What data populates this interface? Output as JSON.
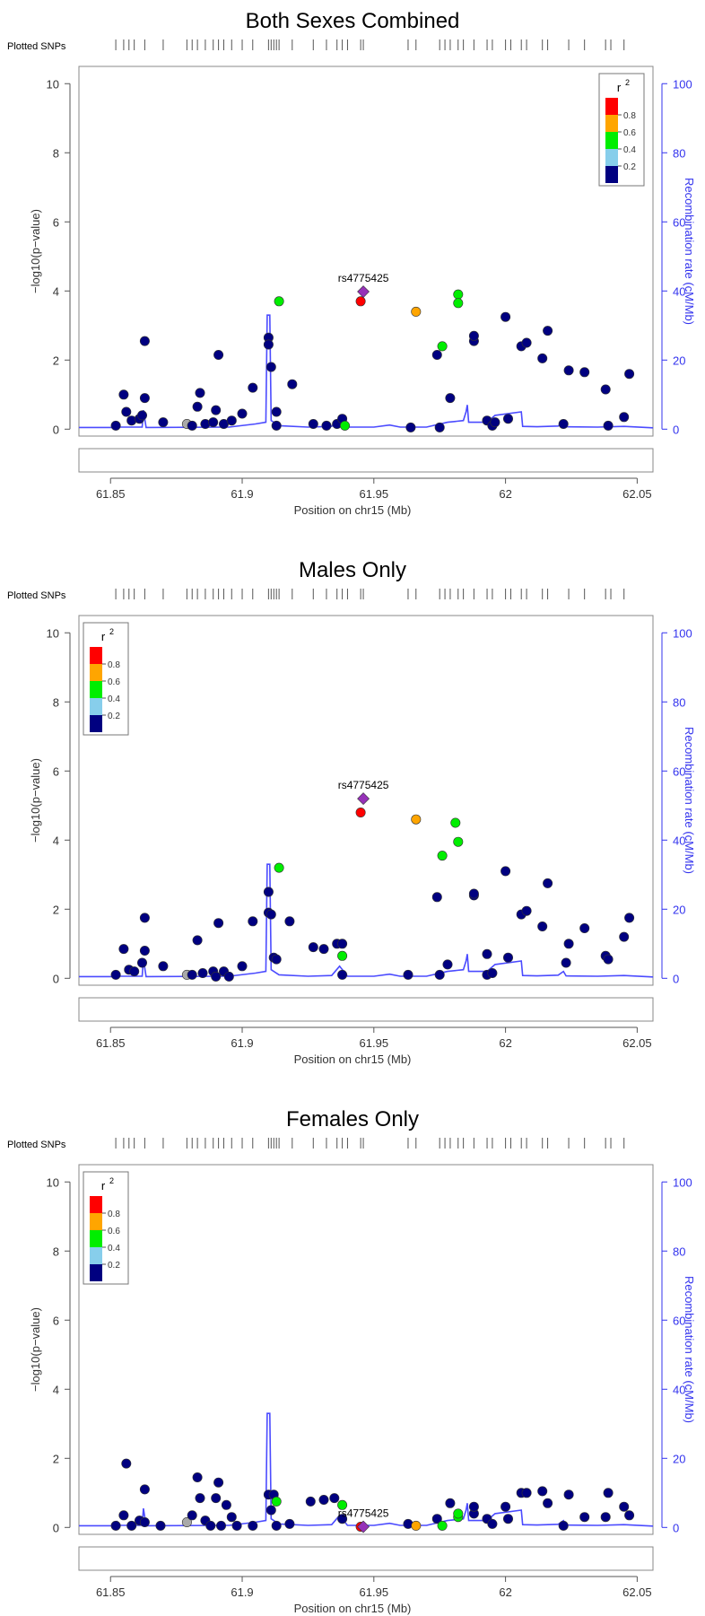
{
  "chart_data": [
    {
      "type": "scatter",
      "title": "Both Sexes Combined",
      "plotted_snps_label": "Plotted SNPs",
      "xlabel": "Position on chr15 (Mb)",
      "ylabel": "−log10(p−value)",
      "y2label": "Recombination rate (cM/Mb)",
      "xlim": [
        61.838,
        62.056
      ],
      "ylim": [
        -0.2,
        10.5
      ],
      "y2lim": [
        -2,
        105
      ],
      "xticks": [
        61.85,
        61.9,
        61.95,
        62,
        62.05
      ],
      "xtick_labels": [
        "61.85",
        "61.9",
        "61.95",
        "62",
        "62.05"
      ],
      "yticks": [
        0,
        2,
        4,
        6,
        8,
        10
      ],
      "ytick_labels": [
        "0",
        "2",
        "4",
        "6",
        "8",
        "10"
      ],
      "y2ticks": [
        0,
        20,
        40,
        60,
        80,
        100
      ],
      "y2tick_labels": [
        "0",
        "20",
        "40",
        "60",
        "80",
        "100"
      ],
      "legend": {
        "title": "r",
        "title_sup": "2",
        "placement": "top-right",
        "labels": [
          "0.8",
          "0.6",
          "0.4",
          "0.2"
        ]
      },
      "lead_snp": {
        "label": "rs4775425",
        "x": 61.946,
        "y": 3.98
      },
      "points": [
        [
          61.852,
          0.1,
          0
        ],
        [
          61.855,
          1.0,
          0
        ],
        [
          61.856,
          0.5,
          0
        ],
        [
          61.858,
          0.25,
          0
        ],
        [
          61.861,
          0.3,
          0
        ],
        [
          61.862,
          0.4,
          0
        ],
        [
          61.863,
          0.9,
          0
        ],
        [
          61.863,
          2.55,
          0
        ],
        [
          61.87,
          0.2,
          0
        ],
        [
          61.879,
          0.15,
          5
        ],
        [
          61.881,
          0.1,
          0
        ],
        [
          61.883,
          0.65,
          0
        ],
        [
          61.884,
          1.05,
          0
        ],
        [
          61.886,
          0.15,
          0
        ],
        [
          61.889,
          0.2,
          0
        ],
        [
          61.89,
          0.55,
          0
        ],
        [
          61.891,
          2.15,
          0
        ],
        [
          61.893,
          0.15,
          0
        ],
        [
          61.896,
          0.25,
          0
        ],
        [
          61.9,
          0.45,
          0
        ],
        [
          61.904,
          1.2,
          0
        ],
        [
          61.91,
          2.65,
          0
        ],
        [
          61.91,
          2.45,
          0
        ],
        [
          61.911,
          1.8,
          0
        ],
        [
          61.913,
          0.5,
          0
        ],
        [
          61.913,
          0.1,
          0
        ],
        [
          61.914,
          3.7,
          2
        ],
        [
          61.919,
          1.3,
          0
        ],
        [
          61.927,
          0.15,
          0
        ],
        [
          61.932,
          0.1,
          0
        ],
        [
          61.936,
          0.15,
          0
        ],
        [
          61.938,
          0.3,
          0
        ],
        [
          61.939,
          0.1,
          2
        ],
        [
          61.945,
          3.7,
          4
        ],
        [
          61.964,
          0.05,
          0
        ],
        [
          61.966,
          3.4,
          3
        ],
        [
          61.974,
          2.15,
          0
        ],
        [
          61.975,
          0.05,
          0
        ],
        [
          61.976,
          2.4,
          2
        ],
        [
          61.979,
          0.9,
          0
        ],
        [
          61.982,
          3.9,
          2
        ],
        [
          61.982,
          3.65,
          2
        ],
        [
          61.988,
          2.55,
          0
        ],
        [
          61.988,
          2.7,
          0
        ],
        [
          61.993,
          0.25,
          0
        ],
        [
          61.995,
          0.1,
          0
        ],
        [
          61.996,
          0.2,
          0
        ],
        [
          62.0,
          3.25,
          0
        ],
        [
          62.001,
          0.3,
          0
        ],
        [
          62.006,
          2.4,
          0
        ],
        [
          62.008,
          2.5,
          0
        ],
        [
          62.014,
          2.05,
          0
        ],
        [
          62.016,
          2.85,
          0
        ],
        [
          62.022,
          0.15,
          0
        ],
        [
          62.024,
          1.7,
          0
        ],
        [
          62.03,
          1.65,
          0
        ],
        [
          62.038,
          1.15,
          0
        ],
        [
          62.039,
          0.1,
          0
        ],
        [
          62.045,
          0.35,
          0
        ],
        [
          62.047,
          1.6,
          0
        ]
      ]
    },
    {
      "type": "scatter",
      "title": "Males Only",
      "plotted_snps_label": "Plotted SNPs",
      "xlabel": "Position on chr15 (Mb)",
      "ylabel": "−log10(p−value)",
      "y2label": "Recombination rate (cM/Mb)",
      "xlim": [
        61.838,
        62.056
      ],
      "ylim": [
        -0.2,
        10.5
      ],
      "y2lim": [
        -2,
        105
      ],
      "xticks": [
        61.85,
        61.9,
        61.95,
        62,
        62.05
      ],
      "xtick_labels": [
        "61.85",
        "61.9",
        "61.95",
        "62",
        "62.05"
      ],
      "yticks": [
        0,
        2,
        4,
        6,
        8,
        10
      ],
      "ytick_labels": [
        "0",
        "2",
        "4",
        "6",
        "8",
        "10"
      ],
      "y2ticks": [
        0,
        20,
        40,
        60,
        80,
        100
      ],
      "y2tick_labels": [
        "0",
        "20",
        "40",
        "60",
        "80",
        "100"
      ],
      "legend": {
        "title": "r",
        "title_sup": "2",
        "placement": "top-left",
        "labels": [
          "0.8",
          "0.6",
          "0.4",
          "0.2"
        ]
      },
      "lead_snp": {
        "label": "rs4775425",
        "x": 61.946,
        "y": 5.2
      },
      "points": [
        [
          61.852,
          0.1,
          0
        ],
        [
          61.855,
          0.85,
          0
        ],
        [
          61.857,
          0.25,
          0
        ],
        [
          61.859,
          0.2,
          0
        ],
        [
          61.862,
          0.45,
          0
        ],
        [
          61.863,
          0.8,
          0
        ],
        [
          61.863,
          1.75,
          0
        ],
        [
          61.87,
          0.35,
          0
        ],
        [
          61.879,
          0.1,
          5
        ],
        [
          61.881,
          0.1,
          0
        ],
        [
          61.883,
          1.1,
          0
        ],
        [
          61.885,
          0.15,
          0
        ],
        [
          61.889,
          0.2,
          0
        ],
        [
          61.89,
          0.05,
          0
        ],
        [
          61.891,
          1.6,
          0
        ],
        [
          61.893,
          0.2,
          0
        ],
        [
          61.895,
          0.05,
          0
        ],
        [
          61.9,
          0.35,
          0
        ],
        [
          61.904,
          1.65,
          0
        ],
        [
          61.91,
          2.5,
          0
        ],
        [
          61.91,
          1.9,
          0
        ],
        [
          61.911,
          1.85,
          0
        ],
        [
          61.912,
          0.6,
          0
        ],
        [
          61.913,
          0.55,
          0
        ],
        [
          61.914,
          3.2,
          2
        ],
        [
          61.918,
          1.65,
          0
        ],
        [
          61.927,
          0.9,
          0
        ],
        [
          61.931,
          0.85,
          0
        ],
        [
          61.936,
          1.0,
          0
        ],
        [
          61.938,
          1.0,
          0
        ],
        [
          61.938,
          0.65,
          2
        ],
        [
          61.938,
          0.1,
          0
        ],
        [
          61.945,
          4.8,
          4
        ],
        [
          61.963,
          0.1,
          0
        ],
        [
          61.966,
          4.6,
          3
        ],
        [
          61.974,
          2.35,
          0
        ],
        [
          61.975,
          0.1,
          0
        ],
        [
          61.976,
          3.55,
          2
        ],
        [
          61.978,
          0.4,
          0
        ],
        [
          61.981,
          4.5,
          2
        ],
        [
          61.982,
          3.95,
          2
        ],
        [
          61.988,
          2.4,
          0
        ],
        [
          61.988,
          2.45,
          0
        ],
        [
          61.993,
          0.7,
          0
        ],
        [
          61.993,
          0.1,
          0
        ],
        [
          61.995,
          0.15,
          0
        ],
        [
          62.0,
          3.1,
          0
        ],
        [
          62.001,
          0.6,
          0
        ],
        [
          62.006,
          1.85,
          0
        ],
        [
          62.008,
          1.95,
          0
        ],
        [
          62.014,
          1.5,
          0
        ],
        [
          62.016,
          2.75,
          0
        ],
        [
          62.023,
          0.45,
          0
        ],
        [
          62.024,
          1.0,
          0
        ],
        [
          62.03,
          1.45,
          0
        ],
        [
          62.038,
          0.65,
          0
        ],
        [
          62.039,
          0.55,
          0
        ],
        [
          62.045,
          1.2,
          0
        ],
        [
          62.047,
          1.75,
          0
        ]
      ]
    },
    {
      "type": "scatter",
      "title": "Females Only",
      "plotted_snps_label": "Plotted SNPs",
      "xlabel": "Position on chr15 (Mb)",
      "ylabel": "−log10(p−value)",
      "y2label": "Recombination rate (cM/Mb)",
      "xlim": [
        61.838,
        62.056
      ],
      "ylim": [
        -0.2,
        10.5
      ],
      "y2lim": [
        -2,
        105
      ],
      "xticks": [
        61.85,
        61.9,
        61.95,
        62,
        62.05
      ],
      "xtick_labels": [
        "61.85",
        "61.9",
        "61.95",
        "62",
        "62.05"
      ],
      "yticks": [
        0,
        2,
        4,
        6,
        8,
        10
      ],
      "ytick_labels": [
        "0",
        "2",
        "4",
        "6",
        "8",
        "10"
      ],
      "y2ticks": [
        0,
        20,
        40,
        60,
        80,
        100
      ],
      "y2tick_labels": [
        "0",
        "20",
        "40",
        "60",
        "80",
        "100"
      ],
      "legend": {
        "title": "r",
        "title_sup": "2",
        "placement": "top-left",
        "labels": [
          "0.8",
          "0.6",
          "0.4",
          "0.2"
        ]
      },
      "lead_snp": {
        "label": "rs4775425",
        "x": 61.946,
        "y": 0.02
      },
      "points": [
        [
          61.852,
          0.05,
          0
        ],
        [
          61.855,
          0.35,
          0
        ],
        [
          61.856,
          1.85,
          0
        ],
        [
          61.858,
          0.05,
          0
        ],
        [
          61.861,
          0.2,
          0
        ],
        [
          61.863,
          0.15,
          0
        ],
        [
          61.863,
          1.1,
          0
        ],
        [
          61.869,
          0.05,
          0
        ],
        [
          61.879,
          0.15,
          5
        ],
        [
          61.881,
          0.35,
          0
        ],
        [
          61.883,
          1.45,
          0
        ],
        [
          61.884,
          0.85,
          0
        ],
        [
          61.886,
          0.2,
          0
        ],
        [
          61.888,
          0.05,
          0
        ],
        [
          61.89,
          0.85,
          0
        ],
        [
          61.891,
          1.3,
          0
        ],
        [
          61.892,
          0.05,
          0
        ],
        [
          61.894,
          0.65,
          0
        ],
        [
          61.896,
          0.3,
          0
        ],
        [
          61.898,
          0.05,
          0
        ],
        [
          61.904,
          0.05,
          0
        ],
        [
          61.91,
          0.95,
          0
        ],
        [
          61.911,
          0.5,
          0
        ],
        [
          61.912,
          0.95,
          0
        ],
        [
          61.913,
          0.75,
          2
        ],
        [
          61.913,
          0.05,
          0
        ],
        [
          61.918,
          0.1,
          0
        ],
        [
          61.926,
          0.75,
          0
        ],
        [
          61.931,
          0.8,
          0
        ],
        [
          61.935,
          0.85,
          0
        ],
        [
          61.938,
          0.65,
          2
        ],
        [
          61.938,
          0.25,
          0
        ],
        [
          61.945,
          0.02,
          4
        ],
        [
          61.963,
          0.1,
          0
        ],
        [
          61.966,
          0.05,
          3
        ],
        [
          61.974,
          0.25,
          0
        ],
        [
          61.976,
          0.05,
          2
        ],
        [
          61.979,
          0.7,
          0
        ],
        [
          61.982,
          0.3,
          2
        ],
        [
          61.982,
          0.4,
          2
        ],
        [
          61.988,
          0.4,
          0
        ],
        [
          61.988,
          0.6,
          0
        ],
        [
          61.993,
          0.25,
          0
        ],
        [
          61.995,
          0.1,
          0
        ],
        [
          62.0,
          0.6,
          0
        ],
        [
          62.001,
          0.25,
          0
        ],
        [
          62.006,
          1.0,
          0
        ],
        [
          62.008,
          1.0,
          0
        ],
        [
          62.014,
          1.05,
          0
        ],
        [
          62.016,
          0.7,
          0
        ],
        [
          62.022,
          0.05,
          0
        ],
        [
          62.024,
          0.95,
          0
        ],
        [
          62.03,
          0.3,
          0
        ],
        [
          62.038,
          0.3,
          0
        ],
        [
          62.039,
          1.0,
          0
        ],
        [
          62.045,
          0.6,
          0
        ],
        [
          62.047,
          0.35,
          0
        ]
      ]
    }
  ],
  "snp_positions": [
    61.852,
    61.855,
    61.857,
    61.859,
    61.863,
    61.87,
    61.879,
    61.881,
    61.883,
    61.886,
    61.889,
    61.891,
    61.893,
    61.896,
    61.9,
    61.904,
    61.91,
    61.911,
    61.912,
    61.913,
    61.914,
    61.919,
    61.927,
    61.932,
    61.936,
    61.938,
    61.94,
    61.945,
    61.946,
    61.963,
    61.966,
    61.975,
    61.977,
    61.979,
    61.982,
    61.984,
    61.988,
    61.993,
    61.995,
    62.0,
    62.002,
    62.006,
    62.008,
    62.014,
    62.016,
    62.024,
    62.03,
    62.038,
    62.04,
    62.045
  ],
  "recomb_profile": [
    [
      61.838,
      0.5
    ],
    [
      61.852,
      0.5
    ],
    [
      61.8525,
      1.5
    ],
    [
      61.853,
      0.6
    ],
    [
      61.862,
      0.6
    ],
    [
      61.8625,
      5.5
    ],
    [
      61.8635,
      0.5
    ],
    [
      61.895,
      0.6
    ],
    [
      61.905,
      1.5
    ],
    [
      61.909,
      2.0
    ],
    [
      61.9095,
      33
    ],
    [
      61.9105,
      33
    ],
    [
      61.911,
      2.5
    ],
    [
      61.914,
      1.0
    ],
    [
      61.925,
      0.6
    ],
    [
      61.934,
      0.8
    ],
    [
      61.937,
      3.5
    ],
    [
      61.94,
      0.6
    ],
    [
      61.95,
      0.6
    ],
    [
      61.956,
      1.2
    ],
    [
      61.96,
      0.6
    ],
    [
      61.97,
      0.6
    ],
    [
      61.978,
      2.0
    ],
    [
      61.984,
      2.5
    ],
    [
      61.985,
      5.0
    ],
    [
      61.9855,
      7.0
    ],
    [
      61.986,
      2.0
    ],
    [
      61.993,
      2.0
    ],
    [
      61.996,
      4.0
    ],
    [
      62.006,
      5.0
    ],
    [
      62.0065,
      0.8
    ],
    [
      62.012,
      0.7
    ],
    [
      62.02,
      0.9
    ],
    [
      62.022,
      2.0
    ],
    [
      62.023,
      0.7
    ],
    [
      62.035,
      0.6
    ],
    [
      62.045,
      0.8
    ],
    [
      62.056,
      0.4
    ]
  ],
  "colors": {
    "r2_08": "#ff0000",
    "r2_06": "#ffa500",
    "r2_04": "#00ee00",
    "r2_02": "#87ceeb",
    "r2_00": "#000080",
    "missing": "#a9a9a9",
    "lead": "#9632b8",
    "recomb_line": "#4b4bff",
    "axis_right": "#3333ee"
  }
}
